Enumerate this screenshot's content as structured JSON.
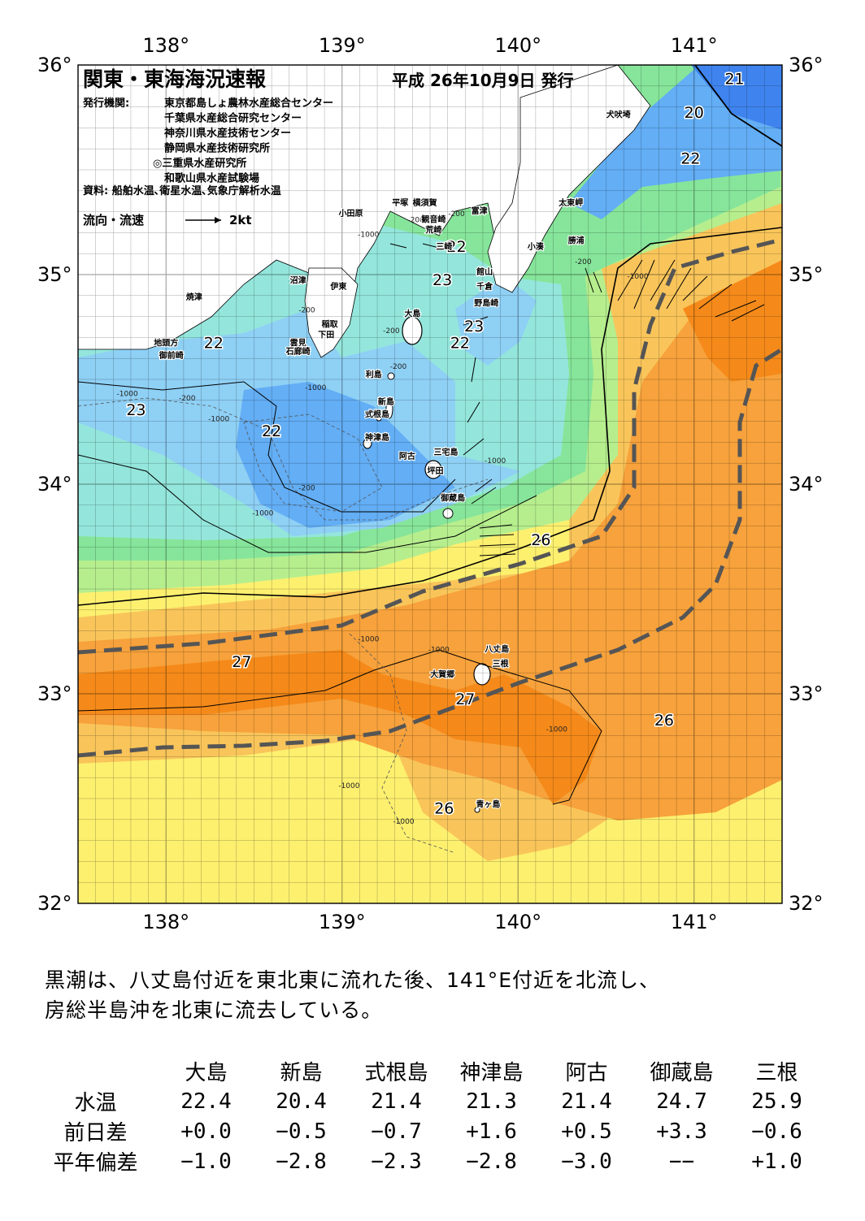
{
  "map": {
    "title": "関東・東海海況速報",
    "issue_date": "平成 26年10月9日 発行",
    "publisher_label": "発行機関:",
    "publishers": [
      "東京都島しょ農林水産総合センター",
      "千葉県水産総合研究センター",
      "神奈川県水産技術センター",
      "静岡県水産技術研究所",
      "◎三重県水産研究所",
      "和歌山県水産試験場"
    ],
    "source": "資料: 船舶水温､衛星水温､気象庁解析水温",
    "flow_legend_label": "流向・流速",
    "flow_legend_scale": "2kt",
    "lon_labels": [
      "138°",
      "139°",
      "140°",
      "141°"
    ],
    "lat_labels": [
      "36°",
      "35°",
      "34°",
      "33°",
      "32°"
    ],
    "lon_values": [
      138,
      139,
      140,
      141
    ],
    "lat_values": [
      36,
      35,
      34,
      33,
      32
    ],
    "extent": {
      "lon_min": 137.5,
      "lon_max": 141.5,
      "lat_min": 32,
      "lat_max": 36
    },
    "isotherm_labels": [
      {
        "text": "21",
        "lon": 141.23,
        "lat": 35.93
      },
      {
        "text": "20",
        "lon": 141.0,
        "lat": 35.77
      },
      {
        "text": "22",
        "lon": 140.98,
        "lat": 35.55
      },
      {
        "text": "22",
        "lon": 139.65,
        "lat": 35.13
      },
      {
        "text": "23",
        "lon": 139.57,
        "lat": 34.97
      },
      {
        "text": "23",
        "lon": 139.75,
        "lat": 34.75
      },
      {
        "text": "22",
        "lon": 139.67,
        "lat": 34.67
      },
      {
        "text": "22",
        "lon": 138.27,
        "lat": 34.67
      },
      {
        "text": "23",
        "lon": 137.83,
        "lat": 34.35
      },
      {
        "text": "22",
        "lon": 138.6,
        "lat": 34.25
      },
      {
        "text": "26",
        "lon": 140.13,
        "lat": 33.73
      },
      {
        "text": "27",
        "lon": 138.43,
        "lat": 33.15
      },
      {
        "text": "27",
        "lon": 139.7,
        "lat": 32.97
      },
      {
        "text": "26",
        "lon": 140.83,
        "lat": 32.87
      },
      {
        "text": "26",
        "lon": 139.58,
        "lat": 32.45
      }
    ],
    "depth_labels": [
      {
        "text": "-1000",
        "lon": 139.15,
        "lat": 35.18
      },
      {
        "text": "-200",
        "lon": 139.42,
        "lat": 35.25
      },
      {
        "text": "-200",
        "lon": 139.65,
        "lat": 35.28
      },
      {
        "text": "-200",
        "lon": 140.37,
        "lat": 35.05
      },
      {
        "text": "-1000",
        "lon": 140.68,
        "lat": 34.98
      },
      {
        "text": "-200",
        "lon": 138.8,
        "lat": 34.82
      },
      {
        "text": "-200",
        "lon": 139.28,
        "lat": 34.72
      },
      {
        "text": "-200",
        "lon": 139.32,
        "lat": 34.55
      },
      {
        "text": "-1000",
        "lon": 137.78,
        "lat": 34.42
      },
      {
        "text": "-200",
        "lon": 138.12,
        "lat": 34.4
      },
      {
        "text": "-1000",
        "lon": 138.3,
        "lat": 34.3
      },
      {
        "text": "-1000",
        "lon": 138.85,
        "lat": 34.45
      },
      {
        "text": "-200",
        "lon": 138.8,
        "lat": 33.97
      },
      {
        "text": "-1000",
        "lon": 138.55,
        "lat": 33.85
      },
      {
        "text": "-1000",
        "lon": 139.87,
        "lat": 34.1
      },
      {
        "text": "-1000",
        "lon": 139.15,
        "lat": 33.25
      },
      {
        "text": "-1000",
        "lon": 139.55,
        "lat": 33.2
      },
      {
        "text": "-1000",
        "lon": 140.22,
        "lat": 32.82
      },
      {
        "text": "-1000",
        "lon": 139.04,
        "lat": 32.55
      },
      {
        "text": "-1000",
        "lon": 139.35,
        "lat": 32.38
      }
    ],
    "place_labels": [
      {
        "text": "犬吠埼",
        "lon": 140.57,
        "lat": 35.75
      },
      {
        "text": "平塚",
        "lon": 139.33,
        "lat": 35.33
      },
      {
        "text": "横須賀",
        "lon": 139.47,
        "lat": 35.33
      },
      {
        "text": "富津",
        "lon": 139.78,
        "lat": 35.29
      },
      {
        "text": "太東岬",
        "lon": 140.3,
        "lat": 35.33
      },
      {
        "text": "小田原",
        "lon": 139.05,
        "lat": 35.28
      },
      {
        "text": "観音崎",
        "lon": 139.52,
        "lat": 35.25
      },
      {
        "text": "荒崎",
        "lon": 139.52,
        "lat": 35.2
      },
      {
        "text": "勝浦",
        "lon": 140.33,
        "lat": 35.15
      },
      {
        "text": "小湊",
        "lon": 140.1,
        "lat": 35.12
      },
      {
        "text": "三崎",
        "lon": 139.58,
        "lat": 35.12
      },
      {
        "text": "館山",
        "lon": 139.81,
        "lat": 35.0
      },
      {
        "text": "千倉",
        "lon": 139.81,
        "lat": 34.93
      },
      {
        "text": "沼津",
        "lon": 138.75,
        "lat": 34.96
      },
      {
        "text": "伊東",
        "lon": 138.98,
        "lat": 34.93
      },
      {
        "text": "焼津",
        "lon": 138.16,
        "lat": 34.88
      },
      {
        "text": "野島崎",
        "lon": 139.82,
        "lat": 34.85
      },
      {
        "text": "大島",
        "lon": 139.4,
        "lat": 34.8
      },
      {
        "text": "稲取",
        "lon": 138.93,
        "lat": 34.75
      },
      {
        "text": "下田",
        "lon": 138.91,
        "lat": 34.7
      },
      {
        "text": "雲見",
        "lon": 138.75,
        "lat": 34.66
      },
      {
        "text": "地頭方",
        "lon": 138.0,
        "lat": 34.66
      },
      {
        "text": "石廊崎",
        "lon": 138.75,
        "lat": 34.62
      },
      {
        "text": "御前崎",
        "lon": 138.03,
        "lat": 34.6
      },
      {
        "text": "利島",
        "lon": 139.18,
        "lat": 34.51
      },
      {
        "text": "新島",
        "lon": 139.25,
        "lat": 34.38
      },
      {
        "text": "式根島",
        "lon": 139.2,
        "lat": 34.32
      },
      {
        "text": "神津島",
        "lon": 139.2,
        "lat": 34.21
      },
      {
        "text": "三宅島",
        "lon": 139.59,
        "lat": 34.14
      },
      {
        "text": "阿古",
        "lon": 139.37,
        "lat": 34.12
      },
      {
        "text": "坪田",
        "lon": 139.53,
        "lat": 34.05
      },
      {
        "text": "御蔵島",
        "lon": 139.63,
        "lat": 33.92
      },
      {
        "text": "八丈島",
        "lon": 139.88,
        "lat": 33.2
      },
      {
        "text": "三根",
        "lon": 139.9,
        "lat": 33.13
      },
      {
        "text": "大賀郷",
        "lon": 139.57,
        "lat": 33.08
      },
      {
        "text": "青ヶ島",
        "lon": 139.83,
        "lat": 32.46
      }
    ]
  },
  "summary": {
    "line1": "黒潮は、八丈島付近を東北東に流れた後、141°E付近を北流し、",
    "line2": "房総半島沖を北東に流去している。"
  },
  "observations": {
    "stations": [
      "大島",
      "新島",
      "式根島",
      "神津島",
      "阿古",
      "御蔵島",
      "三根"
    ],
    "rows": [
      {
        "label": "水温",
        "values": [
          "22.4",
          "20.4",
          "21.4",
          "21.3",
          "21.4",
          "24.7",
          "25.9"
        ]
      },
      {
        "label": "前日差",
        "values": [
          "+0.0",
          "−0.5",
          "−0.7",
          "+1.6",
          "+0.5",
          "+3.3",
          "−0.6"
        ]
      },
      {
        "label": "平年偏差",
        "values": [
          "−1.0",
          "−2.8",
          "−2.3",
          "−2.8",
          "−3.0",
          "−−",
          "+1.0"
        ]
      }
    ]
  },
  "colors": {
    "cold_blue": "#3f84ee",
    "blue": "#63aef5",
    "light_blue": "#8fd0f5",
    "cyan": "#94e6dc",
    "green": "#86e59a",
    "light_green": "#b6ee8e",
    "yellow": "#fdf06f",
    "light_orange": "#f9c55a",
    "orange": "#f7a23c",
    "dark_orange": "#f58a1a",
    "land": "#ffffff",
    "kuroshio_axis": "#555555"
  }
}
